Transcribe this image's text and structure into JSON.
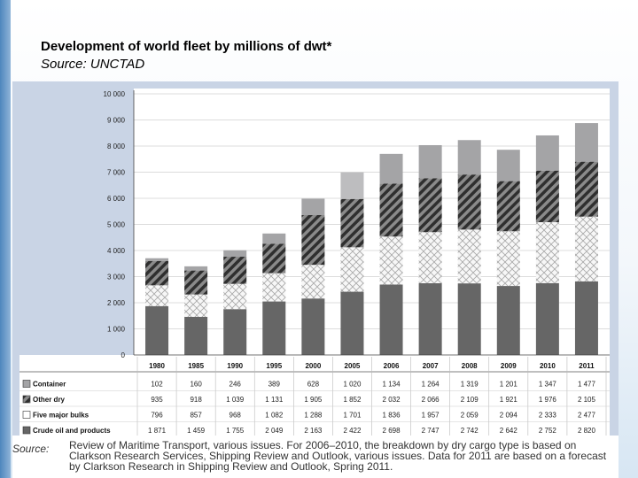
{
  "slide": {
    "title": "Development of world fleet by millions of dwt*",
    "subtitle": "Source: UNCTAD",
    "source_label": "Source:",
    "source_text": "Review of Maritime Transport, various issues. For 2006–2010, the breakdown by dry cargo type is based on Clarkson Research Services, Shipping Review and Outlook, various issues. Data for 2011 are based on a forecast by Clarkson Research in Shipping Review and Outlook, Spring 2011."
  },
  "colors": {
    "container": "#a4a4a6",
    "container_2005": "#bdbdbf",
    "other_dry_bg": "#8a8a8a",
    "other_dry_stripe": "#2f2f2f",
    "bulks_bg": "#f7f7f7",
    "bulks_line": "#a8a8a8",
    "crude": "#666666",
    "grid": "#d0d0d0"
  },
  "chart_data": {
    "type": "bar",
    "stacked": true,
    "title": "Development of world fleet by millions of dwt*",
    "ylim": [
      0,
      10000
    ],
    "yticks": [
      "0",
      "1 000",
      "2 000",
      "3 000",
      "4 000",
      "5 000",
      "6 000",
      "7 000",
      "8 000",
      "9 000",
      "10 000"
    ],
    "categories": [
      "1980",
      "1985",
      "1990",
      "1995",
      "2000",
      "2005",
      "2006",
      "2007",
      "2008",
      "2009",
      "2010",
      "2011"
    ],
    "series": [
      {
        "name": "Crude oil and products",
        "key": "crude",
        "values": [
          1871,
          1459,
          1755,
          2049,
          2163,
          2422,
          2698,
          2747,
          2742,
          2642,
          2752,
          2820
        ],
        "labels": [
          "1 871",
          "1 459",
          "1 755",
          "2 049",
          "2 163",
          "2 422",
          "2 698",
          "2 747",
          "2 742",
          "2 642",
          "2 752",
          "2 820"
        ]
      },
      {
        "name": "Five major bulks",
        "key": "bulks",
        "values": [
          796,
          857,
          968,
          1082,
          1288,
          1701,
          1836,
          1957,
          2059,
          2094,
          2333,
          2477
        ],
        "labels": [
          "796",
          "857",
          "968",
          "1 082",
          "1 288",
          "1 701",
          "1 836",
          "1 957",
          "2 059",
          "2 094",
          "2 333",
          "2 477"
        ]
      },
      {
        "name": "Other dry",
        "key": "other_dry",
        "values": [
          935,
          918,
          1039,
          1131,
          1905,
          1852,
          2032,
          2066,
          2109,
          1921,
          1976,
          2105
        ],
        "labels": [
          "935",
          "918",
          "1 039",
          "1 131",
          "1 905",
          "1 852",
          "2 032",
          "2 066",
          "2 109",
          "1 921",
          "1 976",
          "2 105"
        ]
      },
      {
        "name": "Container",
        "key": "container",
        "values": [
          102,
          160,
          246,
          389,
          628,
          1020,
          1134,
          1264,
          1319,
          1201,
          1347,
          1477
        ],
        "labels": [
          "102",
          "160",
          "246",
          "389",
          "628",
          "1 020",
          "1 134",
          "1 264",
          "1 319",
          "1 201",
          "1 347",
          "1 477"
        ]
      }
    ],
    "table_row_order": [
      "container",
      "other_dry",
      "bulks",
      "crude"
    ]
  }
}
